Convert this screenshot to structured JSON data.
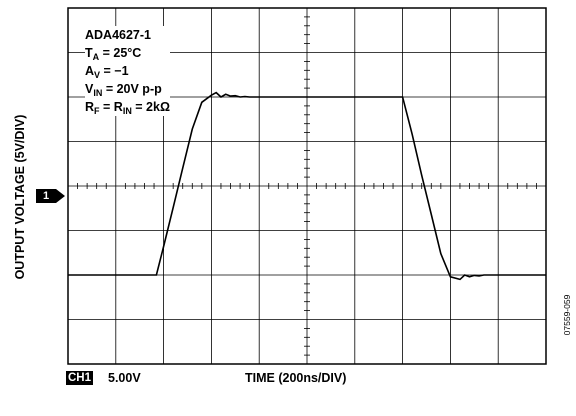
{
  "chart_data": {
    "type": "line",
    "title": "",
    "xlabel": "TIME (200ns/DIV)",
    "ylabel": "OUTPUT VOLTAGE (5V/DIV)",
    "xlim": [
      0,
      2000
    ],
    "ylim": [
      -20,
      20
    ],
    "x_units": "ns",
    "y_units": "V",
    "grid": true,
    "grid_divisions": {
      "x": 10,
      "y": 8
    },
    "channel": {
      "label": "CH1",
      "scale": "5.00V",
      "ground_marker": "1"
    },
    "annotations": [
      [
        "ADA4627-1",
        "",
        ""
      ],
      [
        "T",
        "A",
        " = 25°C"
      ],
      [
        "A",
        "V",
        " = −1"
      ],
      [
        "V",
        "IN",
        " = 20V p-p"
      ],
      [
        "R",
        "F",
        " = R",
        "IN",
        " = 2kΩ"
      ]
    ],
    "figure_id": "07559-059",
    "series": [
      {
        "values_x": [
          0,
          370,
          400,
          440,
          480,
          520,
          560,
          600,
          620,
          640,
          660,
          680,
          700,
          720,
          740,
          760,
          800,
          1200,
          1400,
          1440,
          1480,
          1520,
          1560,
          1600,
          1640,
          1660,
          1680,
          1700,
          1720,
          1740,
          1760,
          1800,
          2000
        ],
        "values_y": [
          -10,
          -10,
          -6.8,
          -2.4,
          2.0,
          6.4,
          9.4,
          10.2,
          10.5,
          10.0,
          10.3,
          10.1,
          10.15,
          10.0,
          10.05,
          10.0,
          10.0,
          10.0,
          10.0,
          5.8,
          1.2,
          -3.2,
          -7.6,
          -10.2,
          -10.5,
          -10.0,
          -10.2,
          -10.05,
          -10.1,
          -10.0,
          -10.0,
          -10.0,
          -10.0
        ]
      }
    ]
  }
}
